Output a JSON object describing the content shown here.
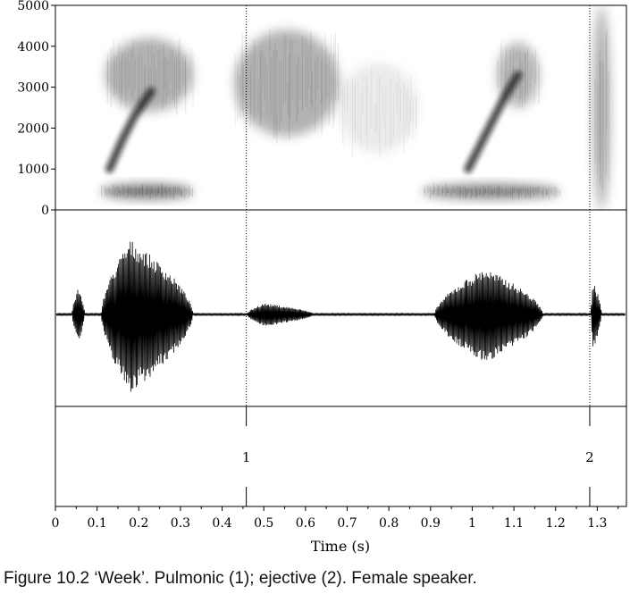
{
  "chart_data": {
    "type": "spectrogram-waveform",
    "xlabel": "Time (s)",
    "xlim": [
      0,
      1.37
    ],
    "x_ticks": [
      "0",
      "0.1",
      "0.2",
      "0.3",
      "0.4",
      "0.5",
      "0.6",
      "0.7",
      "0.8",
      "0.9",
      "1",
      "1.1",
      "1.2",
      "1.3"
    ],
    "x_tick_values": [
      0,
      0.1,
      0.2,
      0.3,
      0.4,
      0.5,
      0.6,
      0.7,
      0.8,
      0.9,
      1.0,
      1.1,
      1.2,
      1.3
    ],
    "spectrogram": {
      "ylim": [
        0,
        5000
      ],
      "y_ticks": [
        "0",
        "1000",
        "2000",
        "3000",
        "4000",
        "5000"
      ],
      "y_tick_values": [
        0,
        1000,
        2000,
        3000,
        4000,
        5000
      ],
      "energy_regions": [
        {
          "t0": 0.11,
          "t1": 0.33,
          "f": 450,
          "bw": 350,
          "strength": 1.0
        },
        {
          "t0": 0.88,
          "t1": 1.21,
          "f": 450,
          "bw": 350,
          "strength": 0.9
        },
        {
          "t0": 0.12,
          "t1": 0.33,
          "f": 3300,
          "bw": 1800,
          "strength": 0.55
        },
        {
          "t0": 0.43,
          "t1": 0.68,
          "f": 3100,
          "bw": 2600,
          "strength": 0.55
        },
        {
          "t0": 0.68,
          "t1": 0.87,
          "f": 2500,
          "bw": 2200,
          "strength": 0.15
        },
        {
          "t0": 1.06,
          "t1": 1.16,
          "f": 3300,
          "bw": 1600,
          "strength": 0.5
        },
        {
          "t0": 1.29,
          "t1": 1.33,
          "f": 2500,
          "bw": 5000,
          "strength": 0.6
        }
      ],
      "formant_tracks": [
        {
          "t": [
            0.13,
            0.16,
            0.19,
            0.23
          ],
          "f": [
            1000,
            1700,
            2300,
            2900
          ]
        },
        {
          "t": [
            0.99,
            1.02,
            1.05,
            1.08,
            1.11
          ],
          "f": [
            1000,
            1600,
            2200,
            2800,
            3300
          ]
        }
      ]
    },
    "waveform": {
      "segments": [
        {
          "t0": 0.04,
          "t1": 0.07,
          "amp": 0.35
        },
        {
          "t0": 0.11,
          "t1": 0.33,
          "amp": 1.0,
          "peak": 0.18
        },
        {
          "t0": 0.46,
          "t1": 0.62,
          "amp": 0.15,
          "peak": 0.5
        },
        {
          "t0": 0.91,
          "t1": 1.17,
          "amp": 0.62,
          "peak": 1.03
        },
        {
          "t0": 1.285,
          "t1": 1.31,
          "amp": 0.45,
          "peak": 1.29
        }
      ]
    },
    "markers": [
      {
        "label": "1",
        "t": 0.458
      },
      {
        "label": "2",
        "t": 1.282
      }
    ]
  },
  "caption": "Figure 10.2  ‘Week’. Pulmonic (1); ejective (2). Female speaker."
}
